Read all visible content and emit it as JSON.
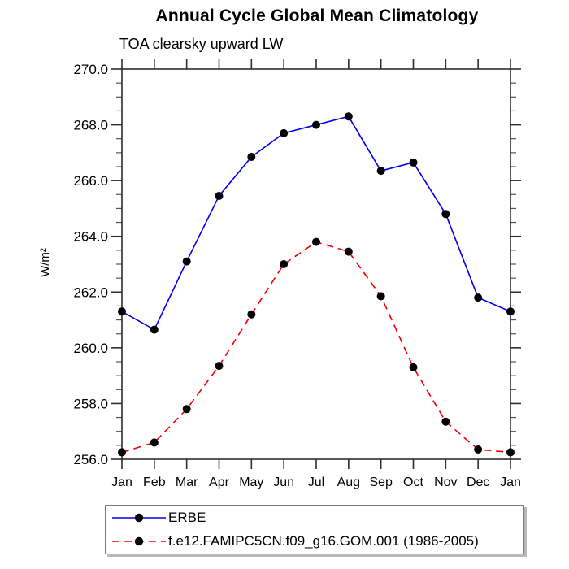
{
  "header": {
    "title": "Annual Cycle Global Mean Climatology",
    "subtitle": "TOA clearsky upward LW"
  },
  "chart_data": {
    "type": "line",
    "title": "Annual Cycle Global Mean Climatology",
    "subtitle": "TOA clearsky upward LW",
    "ylabel": "W/m²",
    "xlabel": "",
    "categories": [
      "Jan",
      "Feb",
      "Mar",
      "Apr",
      "May",
      "Jun",
      "Jul",
      "Aug",
      "Sep",
      "Oct",
      "Nov",
      "Dec",
      "Jan"
    ],
    "ylim": [
      256.0,
      270.0
    ],
    "ytick_major_step": 2.0,
    "ytick_minor_step": 0.5,
    "ytick_labels": [
      "256.0",
      "258.0",
      "260.0",
      "262.0",
      "264.0",
      "266.0",
      "268.0",
      "270.0"
    ],
    "grid": false,
    "legend_position": "bottom-left",
    "series": [
      {
        "name": "ERBE",
        "color": "#0000ee",
        "line_style": "solid",
        "marker": "filled-circle",
        "marker_color": "#000000",
        "values": [
          261.3,
          260.65,
          263.1,
          265.45,
          266.85,
          267.7,
          268.0,
          268.3,
          266.35,
          266.65,
          264.8,
          261.8,
          261.3
        ]
      },
      {
        "name": "f.e12.FAMIPC5CN.f09_g16.GOM.001 (1986-2005)",
        "color": "#ee0000",
        "line_style": "dashed",
        "marker": "filled-circle",
        "marker_color": "#000000",
        "values": [
          256.25,
          256.6,
          257.8,
          259.35,
          261.2,
          263.0,
          263.8,
          263.45,
          261.85,
          259.3,
          257.35,
          256.35,
          256.25
        ]
      }
    ]
  },
  "colors": {
    "axis": "#2e2e2e",
    "minor_tick": "#555555",
    "marker": "#000000",
    "legend_border": "#7a7a7a"
  }
}
